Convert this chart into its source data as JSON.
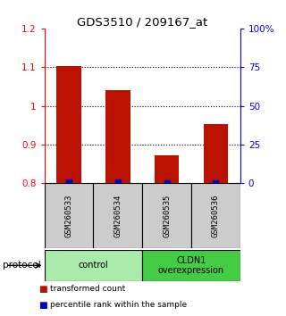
{
  "title": "GDS3510 / 209167_at",
  "samples": [
    "GSM260533",
    "GSM260534",
    "GSM260535",
    "GSM260536"
  ],
  "red_values": [
    1.103,
    1.04,
    0.872,
    0.953
  ],
  "blue_values": [
    0.82,
    0.68,
    0.25,
    0.46
  ],
  "ylim_left": [
    0.8,
    1.2
  ],
  "yticks_left": [
    0.8,
    0.9,
    1.0,
    1.1,
    1.2
  ],
  "ytick_labels_left": [
    "0.8",
    "0.9",
    "1",
    "1.1",
    "1.2"
  ],
  "yticks_right_pct": [
    0,
    25,
    50,
    75,
    100
  ],
  "ytick_labels_right": [
    "0",
    "25",
    "50",
    "75",
    "100%"
  ],
  "groups": [
    {
      "label": "control",
      "samples": [
        0,
        1
      ],
      "color": "#AAEAAA"
    },
    {
      "label": "CLDN1\noverexpression",
      "samples": [
        2,
        3
      ],
      "color": "#44CC44"
    }
  ],
  "bar_color": "#BB1100",
  "dot_color": "#0000CC",
  "bar_width": 0.5,
  "protocol_label": "protocol",
  "legend_items": [
    {
      "color": "#BB1100",
      "label": "transformed count"
    },
    {
      "color": "#0000CC",
      "label": "percentile rank within the sample"
    }
  ]
}
